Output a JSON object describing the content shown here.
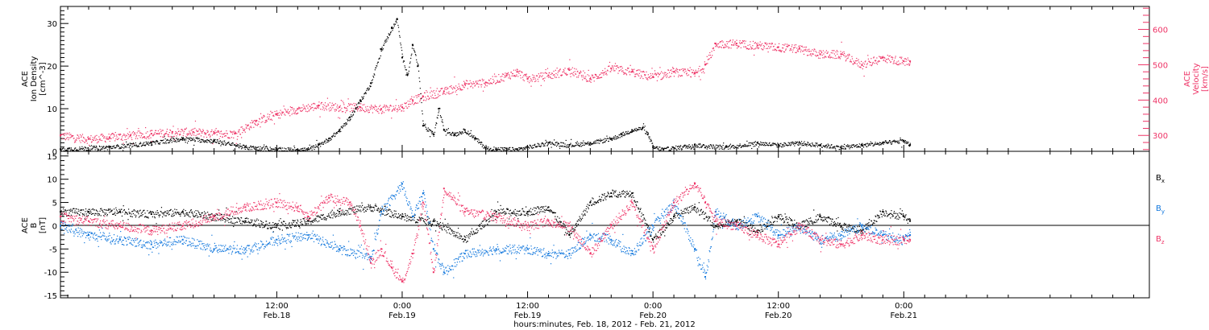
{
  "colors": {
    "black": "#000000",
    "pink": "#ee3366",
    "blue": "#1177dd",
    "axis": "#000000",
    "background": "#ffffff"
  },
  "xaxis": {
    "title": "hours:minutes, Feb. 18, 2012 - Feb. 21, 2012",
    "range_hours": [
      -8.7,
      95.5
    ],
    "ticks": [
      {
        "hour": 12,
        "time": "12:00",
        "date": "Feb.18"
      },
      {
        "hour": 24,
        "time": "0:00",
        "date": "Feb.19"
      },
      {
        "hour": 36,
        "time": "12:00",
        "date": "Feb.19"
      },
      {
        "hour": 48,
        "time": "0:00",
        "date": "Feb.20"
      },
      {
        "hour": 60,
        "time": "12:00",
        "date": "Feb.20"
      },
      {
        "hour": 72,
        "time": "0:00",
        "date": "Feb.21"
      }
    ],
    "data_end_hour": 72.6
  },
  "panel1": {
    "left_label": [
      "ACE",
      "Ion Density",
      "[cm^-3]"
    ],
    "right_label": [
      "ACE",
      "Velocity",
      "[km/s]"
    ],
    "left_ticks": [
      0,
      10,
      20,
      30
    ],
    "right_ticks": [
      300,
      400,
      500,
      600
    ],
    "left_range": [
      0,
      34
    ],
    "right_range": [
      255,
      665
    ]
  },
  "panel2": {
    "left_label": [
      "ACE",
      "B",
      "[nT]"
    ],
    "ticks": [
      -15,
      -10,
      -5,
      0,
      5,
      10,
      15
    ],
    "range": [
      -15.5,
      16
    ],
    "legend": [
      {
        "label": "B",
        "sub": "x",
        "color": "#000000"
      },
      {
        "label": "B",
        "sub": "y",
        "color": "#1177dd"
      },
      {
        "label": "B",
        "sub": "z",
        "color": "#ee3366"
      }
    ]
  },
  "chart_data": [
    {
      "type": "scatter",
      "title": "",
      "xlabel": "hours:minutes, Feb. 18, 2012 - Feb. 21, 2012",
      "ylabel": "ACE Ion Density [cm^-3]",
      "y2label": "ACE Velocity [km/s]",
      "ylim": [
        0,
        34
      ],
      "y2lim": [
        255,
        665
      ],
      "x_units": "hours from 0:00 Feb. 18, 2012",
      "series": [
        {
          "name": "Ion Density",
          "axis": "left",
          "color": "#000000",
          "x": [
            -8.7,
            -4,
            0,
            3,
            6,
            9,
            12,
            15,
            16,
            17,
            18,
            19,
            20,
            21,
            22,
            23,
            23.5,
            24,
            24.5,
            25,
            25.5,
            26,
            27,
            27.5,
            28,
            29,
            30,
            31,
            32,
            33,
            35,
            38,
            40,
            42,
            44,
            45,
            46,
            47,
            47.5,
            48,
            49,
            52,
            55,
            58,
            60,
            62,
            64,
            66,
            68,
            70,
            72,
            72.6
          ],
          "y": [
            0.5,
            1,
            2,
            3,
            2.5,
            1,
            0.5,
            0.5,
            1.5,
            3,
            5,
            8,
            12,
            16,
            24,
            29,
            31,
            22,
            18,
            25,
            20,
            6,
            4,
            10,
            5,
            4,
            5,
            3,
            0.8,
            0.5,
            0.5,
            2,
            1.5,
            2,
            3,
            4,
            5,
            5.5,
            4,
            1,
            0.5,
            1.5,
            1,
            2,
            1.5,
            2,
            1.5,
            1,
            1.5,
            2,
            2.5,
            1.5
          ]
        },
        {
          "name": "Velocity",
          "axis": "right",
          "color": "#ee3366",
          "x": [
            -8.7,
            -6,
            -4,
            -2,
            0,
            2,
            4,
            6,
            8,
            10,
            12,
            14,
            16,
            18,
            20,
            22,
            24,
            25,
            26,
            28,
            30,
            32,
            34,
            35,
            36,
            38,
            40,
            42,
            44,
            46,
            48,
            50,
            52,
            53,
            54,
            56,
            58,
            60,
            62,
            64,
            66,
            68,
            70,
            72,
            72.6
          ],
          "y": [
            300,
            290,
            295,
            300,
            305,
            310,
            310,
            305,
            305,
            340,
            360,
            375,
            385,
            380,
            380,
            375,
            380,
            400,
            410,
            425,
            445,
            450,
            470,
            480,
            460,
            470,
            485,
            460,
            490,
            480,
            465,
            480,
            475,
            500,
            560,
            560,
            555,
            550,
            545,
            530,
            530,
            500,
            520,
            510,
            510
          ]
        }
      ]
    },
    {
      "type": "scatter",
      "title": "",
      "xlabel": "hours:minutes, Feb. 18, 2012 - Feb. 21, 2012",
      "ylabel": "ACE B [nT]",
      "ylim": [
        -15.5,
        16
      ],
      "x_units": "hours from 0:00 Feb. 18, 2012",
      "series": [
        {
          "name": "Bx",
          "color": "#000000",
          "x": [
            -8.7,
            -6,
            -3,
            0,
            3,
            6,
            9,
            12,
            15,
            18,
            21,
            24,
            27,
            30,
            33,
            36,
            38,
            40,
            42,
            44,
            46,
            48,
            50,
            52,
            54,
            56,
            58,
            60,
            62,
            64,
            66,
            68,
            70,
            72,
            72.6
          ],
          "y": [
            3,
            3,
            3,
            2.5,
            3,
            2,
            1,
            0,
            1,
            3,
            4,
            2,
            1,
            -3,
            3,
            3,
            4,
            -2,
            5,
            7,
            7,
            -3,
            2,
            4,
            0,
            1,
            -1,
            2,
            0,
            2,
            0,
            -1,
            3,
            2,
            1
          ]
        },
        {
          "name": "By",
          "color": "#1177dd",
          "x": [
            -8.7,
            -6,
            -3,
            0,
            3,
            6,
            9,
            12,
            15,
            18,
            21,
            22,
            24,
            25,
            26,
            27,
            28,
            30,
            33,
            36,
            38,
            40,
            42,
            44,
            46,
            48,
            50,
            52,
            53,
            54,
            56,
            58,
            60,
            62,
            64,
            66,
            68,
            70,
            72,
            72.6
          ],
          "y": [
            0,
            -2,
            -3,
            -4,
            -3,
            -5,
            -5,
            -3,
            -2,
            -5,
            -7,
            3,
            9,
            2,
            7,
            -5,
            -10,
            -6,
            -5,
            -5,
            -6,
            -6,
            -2,
            -3,
            -6,
            0,
            5,
            -5,
            -11,
            3,
            0,
            2,
            -2,
            0,
            -3,
            -2,
            0,
            -2,
            -3,
            -2
          ]
        },
        {
          "name": "Bz",
          "color": "#ee3366",
          "x": [
            -8.7,
            -6,
            -3,
            0,
            3,
            6,
            9,
            12,
            14,
            15,
            17,
            19,
            20,
            21,
            22,
            23,
            24,
            25,
            26,
            27,
            28,
            30,
            33,
            36,
            38,
            40,
            42,
            44,
            46,
            48,
            50,
            52,
            53,
            54,
            56,
            58,
            60,
            62,
            64,
            66,
            68,
            70,
            72,
            72.6
          ],
          "y": [
            2,
            1,
            0,
            -1,
            0,
            2,
            4,
            5,
            4,
            2,
            6,
            5,
            0,
            -8,
            -5,
            -9,
            -12,
            -6,
            5,
            -10,
            8,
            3,
            2,
            0,
            1,
            0,
            -6,
            0,
            5,
            -5,
            5,
            9,
            5,
            1,
            0,
            -2,
            -4,
            0,
            -3,
            -4,
            -2,
            -3,
            -3,
            -3
          ]
        }
      ]
    }
  ]
}
